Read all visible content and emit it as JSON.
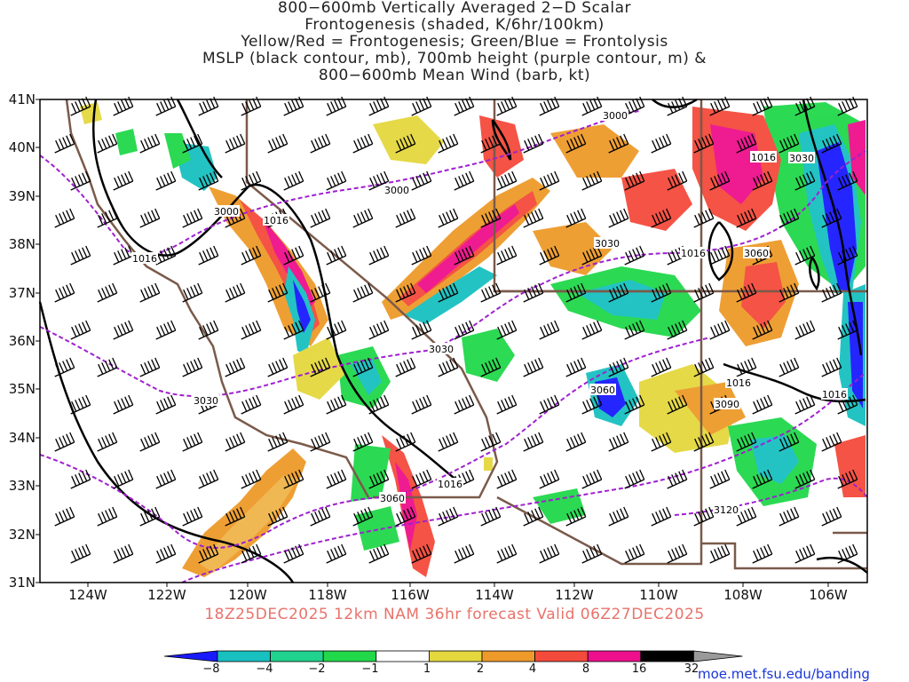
{
  "title_lines": [
    "800−600mb Vertically Averaged 2−D Scalar",
    "Frontogenesis (shaded, K/6hr/100km)",
    "Yellow/Red = Frontogenesis;  Green/Blue = Frontolysis",
    "MSLP (black contour, mb), 700mb height (purple contour, m) &",
    "800−600mb Mean Wind (barb, kt)"
  ],
  "lat_labels": [
    "41N",
    "40N",
    "39N",
    "38N",
    "37N",
    "36N",
    "35N",
    "34N",
    "33N",
    "32N",
    "31N"
  ],
  "lon_labels": [
    "124W",
    "122W",
    "120W",
    "118W",
    "116W",
    "114W",
    "112W",
    "110W",
    "108W",
    "106W"
  ],
  "valid_text": "18Z25DEC2025 12km NAM 36hr forecast Valid 06Z27DEC2025",
  "colorbar": {
    "ticks": [
      "−8",
      "−4",
      "−2",
      "−1",
      "1",
      "2",
      "4",
      "8",
      "16",
      "32"
    ],
    "colors": [
      "#1a1aff",
      "#18c0c0",
      "#1fd28e",
      "#21d84a",
      "#ffffff",
      "#e4d83e",
      "#ee9a2a",
      "#f44a3c",
      "#ee0f8c",
      "#000000",
      "#9a9a9a"
    ]
  },
  "contour_labels": {
    "mslp": [
      "1016",
      "1016",
      "1016",
      "1016",
      "1016",
      "1016",
      "1016"
    ],
    "height": [
      "3000",
      "3000",
      "3000",
      "3030",
      "3030",
      "3030",
      "3060",
      "3060",
      "3060",
      "3090",
      "3120",
      "3030"
    ]
  },
  "credit": "moe.met.fsu.edu/banding",
  "colors": {
    "mslp": "#000000",
    "height": "#a020d0",
    "borders": "#7a5a4a",
    "valid_text": "#e8736b",
    "credit": "#1a35d6"
  }
}
